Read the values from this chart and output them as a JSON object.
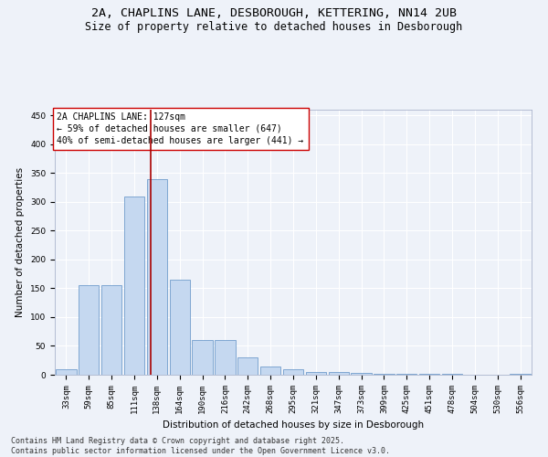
{
  "title_line1": "2A, CHAPLINS LANE, DESBOROUGH, KETTERING, NN14 2UB",
  "title_line2": "Size of property relative to detached houses in Desborough",
  "xlabel": "Distribution of detached houses by size in Desborough",
  "ylabel": "Number of detached properties",
  "bar_color": "#c5d8f0",
  "bar_edge_color": "#5b8ec4",
  "background_color": "#eef2f9",
  "grid_color": "#ffffff",
  "categories": [
    "33sqm",
    "59sqm",
    "85sqm",
    "111sqm",
    "138sqm",
    "164sqm",
    "190sqm",
    "216sqm",
    "242sqm",
    "268sqm",
    "295sqm",
    "321sqm",
    "347sqm",
    "373sqm",
    "399sqm",
    "425sqm",
    "451sqm",
    "478sqm",
    "504sqm",
    "530sqm",
    "556sqm"
  ],
  "values": [
    10,
    155,
    155,
    310,
    340,
    165,
    60,
    60,
    30,
    15,
    10,
    5,
    5,
    3,
    2,
    2,
    1,
    1,
    0,
    0,
    2
  ],
  "vline_pos": 3.72,
  "vline_color": "#aa0000",
  "annotation_text": "2A CHAPLINS LANE: 127sqm\n← 59% of detached houses are smaller (647)\n40% of semi-detached houses are larger (441) →",
  "annotation_box_color": "#ffffff",
  "annotation_edge_color": "#cc0000",
  "ylim": [
    0,
    460
  ],
  "yticks": [
    0,
    50,
    100,
    150,
    200,
    250,
    300,
    350,
    400,
    450
  ],
  "footnote": "Contains HM Land Registry data © Crown copyright and database right 2025.\nContains public sector information licensed under the Open Government Licence v3.0.",
  "title_fontsize": 9.5,
  "subtitle_fontsize": 8.5,
  "axis_label_fontsize": 7.5,
  "tick_fontsize": 6.5,
  "annotation_fontsize": 7,
  "footnote_fontsize": 6
}
